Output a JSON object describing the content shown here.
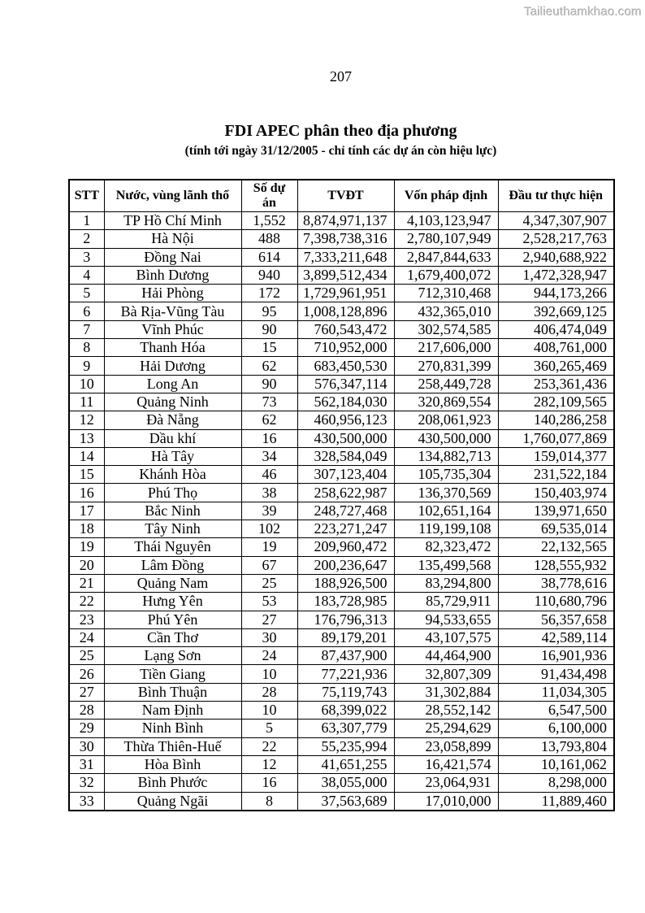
{
  "watermark": "Tailieuthamkhao.com",
  "page_number": "207",
  "title": "FDI APEC phân theo địa phương",
  "subtitle": "(tính tới ngày 31/12/2005 - chỉ tính các dự án còn hiệu lực)",
  "table": {
    "columns": [
      "STT",
      "Nước, vùng lãnh thổ",
      "Số dự án",
      "TVĐT",
      "Vốn pháp định",
      "Đầu tư thực hiện"
    ],
    "rows": [
      [
        "1",
        "TP Hồ Chí Minh",
        "1,552",
        "8,874,971,137",
        "4,103,123,947",
        "4,347,307,907"
      ],
      [
        "2",
        "Hà Nội",
        "488",
        "7,398,738,316",
        "2,780,107,949",
        "2,528,217,763"
      ],
      [
        "3",
        "Đồng Nai",
        "614",
        "7,333,211,648",
        "2,847,844,633",
        "2,940,688,922"
      ],
      [
        "4",
        "Bình Dương",
        "940",
        "3,899,512,434",
        "1,679,400,072",
        "1,472,328,947"
      ],
      [
        "5",
        "Hải Phòng",
        "172",
        "1,729,961,951",
        "712,310,468",
        "944,173,266"
      ],
      [
        "6",
        "Bà Rịa-Vũng Tàu",
        "95",
        "1,008,128,896",
        "432,365,010",
        "392,669,125"
      ],
      [
        "7",
        "Vĩnh Phúc",
        "90",
        "760,543,472",
        "302,574,585",
        "406,474,049"
      ],
      [
        "8",
        "Thanh Hóa",
        "15",
        "710,952,000",
        "217,606,000",
        "408,761,000"
      ],
      [
        "9",
        "Hải Dương",
        "62",
        "683,450,530",
        "270,831,399",
        "360,265,469"
      ],
      [
        "10",
        "Long An",
        "90",
        "576,347,114",
        "258,449,728",
        "253,361,436"
      ],
      [
        "11",
        "Quảng Ninh",
        "73",
        "562,184,030",
        "320,869,554",
        "282,109,565"
      ],
      [
        "12",
        "Đà Nẵng",
        "62",
        "460,956,123",
        "208,061,923",
        "140,286,258"
      ],
      [
        "13",
        "Dầu khí",
        "16",
        "430,500,000",
        "430,500,000",
        "1,760,077,869"
      ],
      [
        "14",
        "Hà Tây",
        "34",
        "328,584,049",
        "134,882,713",
        "159,014,377"
      ],
      [
        "15",
        "Khánh Hòa",
        "46",
        "307,123,404",
        "105,735,304",
        "231,522,184"
      ],
      [
        "16",
        "Phú Thọ",
        "38",
        "258,622,987",
        "136,370,569",
        "150,403,974"
      ],
      [
        "17",
        "Bắc Ninh",
        "39",
        "248,727,468",
        "102,651,164",
        "139,971,650"
      ],
      [
        "18",
        "Tây Ninh",
        "102",
        "223,271,247",
        "119,199,108",
        "69,535,014"
      ],
      [
        "19",
        "Thái Nguyên",
        "19",
        "209,960,472",
        "82,323,472",
        "22,132,565"
      ],
      [
        "20",
        "Lâm Đồng",
        "67",
        "200,236,647",
        "135,499,568",
        "128,555,932"
      ],
      [
        "21",
        "Quảng Nam",
        "25",
        "188,926,500",
        "83,294,800",
        "38,778,616"
      ],
      [
        "22",
        "Hưng Yên",
        "53",
        "183,728,985",
        "85,729,911",
        "110,680,796"
      ],
      [
        "23",
        "Phú Yên",
        "27",
        "176,796,313",
        "94,533,655",
        "56,357,658"
      ],
      [
        "24",
        "Cần Thơ",
        "30",
        "89,179,201",
        "43,107,575",
        "42,589,114"
      ],
      [
        "25",
        "Lạng Sơn",
        "24",
        "87,437,900",
        "44,464,900",
        "16,901,936"
      ],
      [
        "26",
        "Tiền Giang",
        "10",
        "77,221,936",
        "32,807,309",
        "91,434,498"
      ],
      [
        "27",
        "Bình Thuận",
        "28",
        "75,119,743",
        "31,302,884",
        "11,034,305"
      ],
      [
        "28",
        "Nam Định",
        "10",
        "68,399,022",
        "28,552,142",
        "6,547,500"
      ],
      [
        "29",
        "Ninh Bình",
        "5",
        "63,307,779",
        "25,294,629",
        "6,100,000"
      ],
      [
        "30",
        "Thừa Thiên-Huế",
        "22",
        "55,235,994",
        "23,058,899",
        "13,793,804"
      ],
      [
        "31",
        "Hòa Bình",
        "12",
        "41,651,255",
        "16,421,574",
        "10,161,062"
      ],
      [
        "32",
        "Bình Phước",
        "16",
        "38,055,000",
        "23,064,931",
        "8,298,000"
      ],
      [
        "33",
        "Quảng Ngãi",
        "8",
        "37,563,689",
        "17,010,000",
        "11,889,460"
      ]
    ]
  }
}
